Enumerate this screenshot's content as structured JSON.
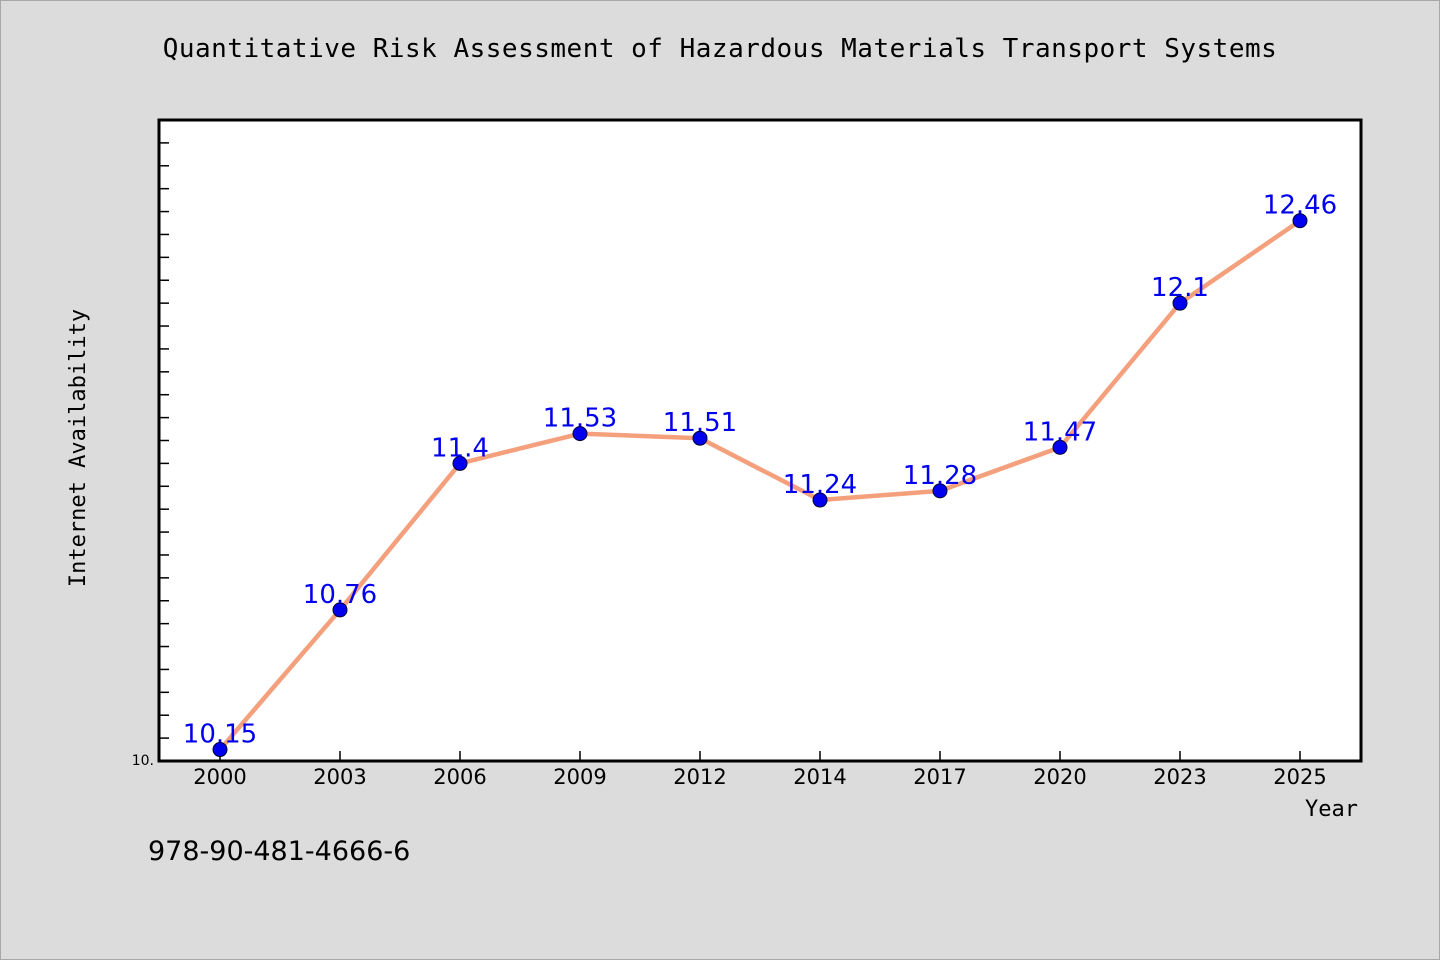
{
  "title": "Quantitative Risk Assessment of Hazardous Materials Transport Systems",
  "footer": {
    "code": "978-90-481-4666-6"
  },
  "colors": {
    "background": "#dcdcdc",
    "plot_background": "#ffffff",
    "line": "#f4a07c",
    "marker": "#0000ee",
    "label": "#0000ee",
    "axis": "#000000"
  },
  "chart_data": {
    "type": "line",
    "title": "Quantitative Risk Assessment of Hazardous Materials Transport Systems",
    "xlabel": "Year",
    "ylabel": "Internet Availability",
    "categories": [
      "2000",
      "2003",
      "2006",
      "2009",
      "2012",
      "2014",
      "2017",
      "2020",
      "2023",
      "2025"
    ],
    "series": [
      {
        "values": [
          10.15,
          10.76,
          11.4,
          11.53,
          11.51,
          11.24,
          11.28,
          11.47,
          12.1,
          12.46
        ]
      }
    ],
    "data_labels": [
      "10.15",
      "10.76",
      "11.4",
      "11.53",
      "11.51",
      "11.24",
      "11.28",
      "11.47",
      "12.1",
      "12.46"
    ],
    "ylim": [
      10.1,
      12.9
    ],
    "y_tick_label": "10.",
    "grid": false,
    "legend": "none",
    "marker": "circle"
  }
}
